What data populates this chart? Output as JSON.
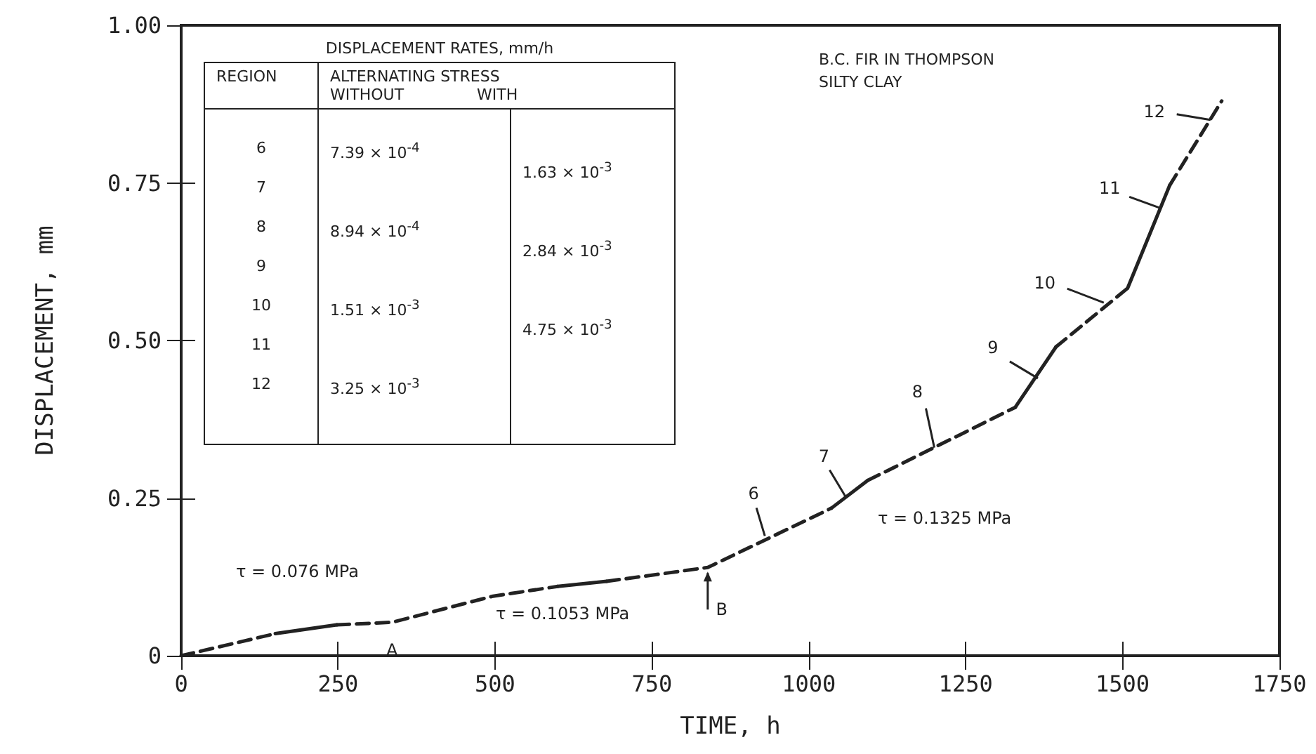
{
  "chart_data": {
    "type": "line",
    "xlabel": "TIME, h",
    "ylabel": "DISPLACEMENT, mm",
    "xlim": [
      0,
      1750
    ],
    "xticks": [
      0,
      250,
      500,
      750,
      1000,
      1250,
      1500,
      1750
    ],
    "ylim": [
      0,
      1
    ],
    "yticks": [
      0,
      {
        "value": 0.25,
        "label": "0.25"
      },
      {
        "value": 0.5,
        "label": "0.50"
      },
      {
        "value": 0.75,
        "label": "0.75"
      },
      {
        "value": 1,
        "label": "1.00"
      }
    ],
    "grid": false,
    "series": [
      {
        "color": "#222222",
        "line_style": "dashed",
        "x": [
          0,
          150
        ],
        "values": [
          0,
          0.035
        ]
      },
      {
        "color": "#222222",
        "line_style": "solid",
        "x": [
          150,
          248
        ],
        "values": [
          0.035,
          0.049
        ]
      },
      {
        "color": "#222222",
        "line_style": "dashed",
        "x": [
          248,
          336,
          495,
          600
        ],
        "values": [
          0.049,
          0.053,
          0.094,
          0.11
        ]
      },
      {
        "color": "#222222",
        "line_style": "solid",
        "x": [
          600,
          678
        ],
        "values": [
          0.11,
          0.118
        ]
      },
      {
        "color": "#222222",
        "line_style": "dashed",
        "x": [
          678,
          839,
          1036
        ],
        "values": [
          0.118,
          0.14,
          0.234
        ]
      },
      {
        "color": "#222222",
        "line_style": "solid",
        "x": [
          1036,
          1094
        ],
        "values": [
          0.234,
          0.278
        ]
      },
      {
        "color": "#222222",
        "line_style": "dashed",
        "x": [
          1094,
          1329
        ],
        "values": [
          0.278,
          0.394
        ]
      },
      {
        "color": "#222222",
        "line_style": "solid",
        "x": [
          1329,
          1394
        ],
        "values": [
          0.394,
          0.49
        ]
      },
      {
        "color": "#222222",
        "line_style": "dashed",
        "x": [
          1394,
          1508
        ],
        "values": [
          0.49,
          0.583
        ]
      },
      {
        "color": "#222222",
        "line_style": "solid",
        "x": [
          1508,
          1575
        ],
        "values": [
          0.583,
          0.746
        ]
      },
      {
        "color": "#222222",
        "line_style": "dashed",
        "x": [
          1575,
          1658
        ],
        "values": [
          0.746,
          0.88
        ]
      }
    ],
    "annotations": [
      "DISPLACEMENT RATES, mm/h",
      "REGION",
      "ALTERNATING STRESS",
      "WITHOUT",
      "WITH",
      "6",
      "7",
      "8",
      "9",
      "10",
      "11",
      "12",
      "7.39 × 10$^{-4}$",
      "8.94 × 10$^{-4}$",
      "1.51 × 10$^{-3}$",
      "3.25 × 10$^{-3}$",
      "1.63 × 10$^{-3}$",
      "2.84 × 10$^{-3}$",
      "4.75 × 10$^{-3}$",
      "B.C. FIR IN THOMPSON SILTY CLAY",
      "τ = 0.076 MPa",
      "τ = 0.1053 MPa",
      "τ = 0.1325 MPa",
      {
        "text": "6",
        "x": 930,
        "y": 0.19
      },
      {
        "text": "7",
        "x": 1060,
        "y": 0.25
      },
      {
        "text": "8",
        "x": 1200,
        "y": 0.33
      },
      {
        "text": "9",
        "x": 1365,
        "y": 0.44
      },
      {
        "text": "10",
        "x": 1470,
        "y": 0.56
      },
      {
        "text": "11",
        "x": 1560,
        "y": 0.71
      },
      {
        "text": "12",
        "x": 1640,
        "y": 0.85
      },
      {
        "text": "A",
        "x": 336,
        "y": 0.053
      },
      {
        "text": "B",
        "x": 839,
        "y": 0.14
      }
    ]
  }
}
